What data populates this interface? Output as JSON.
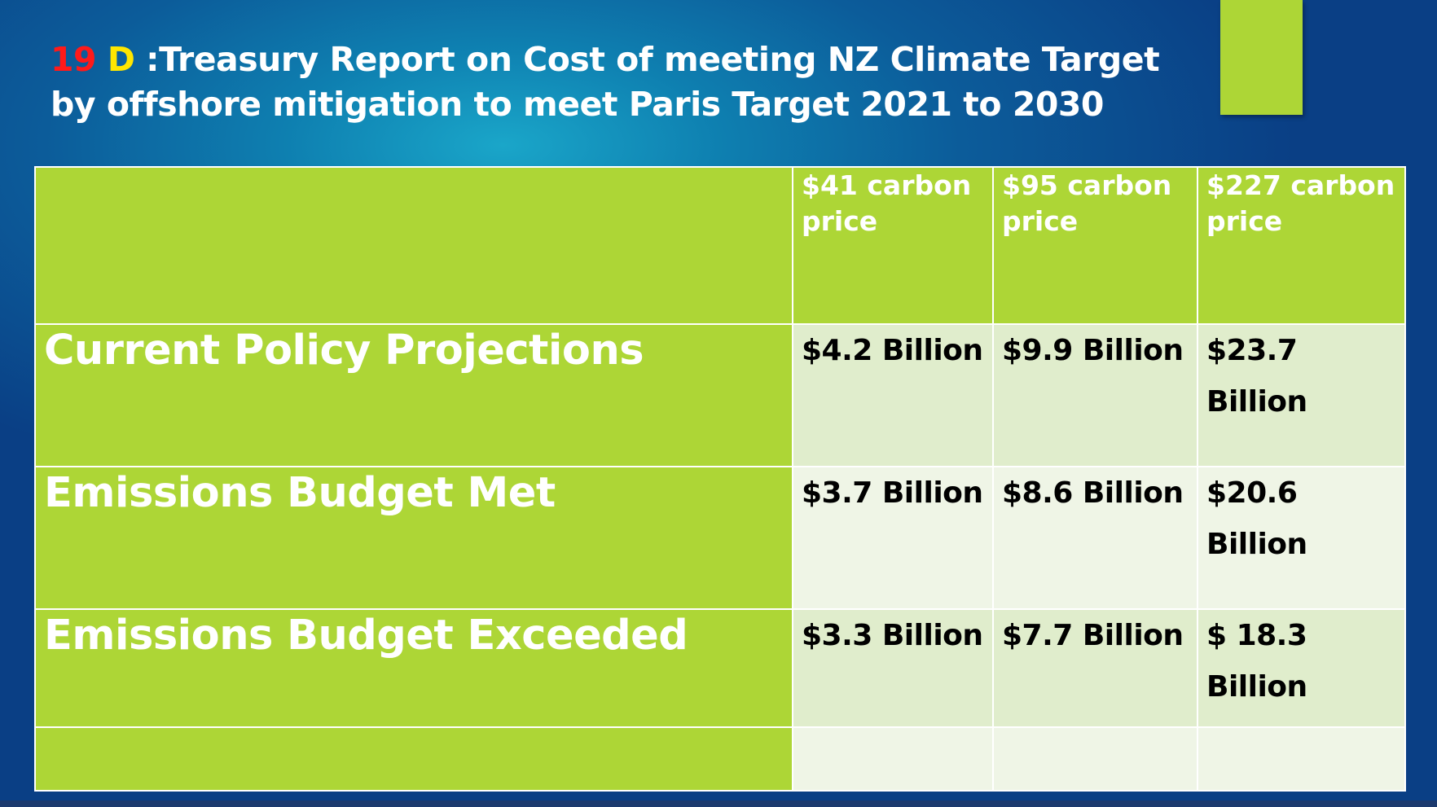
{
  "slide": {
    "title_number": "19",
    "title_letter": "D",
    "title_text": ":Treasury Report on Cost of meeting NZ Climate Target by offshore mitigation to meet Paris Target  2021 to 2030",
    "colors": {
      "accent_green": "#add636",
      "title_number": "#ff1a1a",
      "title_letter": "#ffe600",
      "background": "#0c5c9a"
    }
  },
  "table": {
    "header": {
      "corner": "",
      "columns": [
        "$41 carbon price",
        "$95 carbon price",
        "$227 carbon price"
      ]
    },
    "rows": [
      {
        "label": "Current Policy Projections",
        "values": [
          "$4.2 Billion",
          "$9.9 Billion",
          "$23.7 Billion"
        ]
      },
      {
        "label": "Emissions Budget Met",
        "values": [
          "$3.7 Billion",
          "$8.6 Billion",
          "$20.6 Billion"
        ]
      },
      {
        "label": "Emissions Budget Exceeded",
        "values": [
          "$3.3 Billion",
          "$7.7 Billion",
          "$ 18.3 Billion"
        ]
      },
      {
        "label": "",
        "values": [
          "",
          "",
          ""
        ]
      }
    ]
  }
}
